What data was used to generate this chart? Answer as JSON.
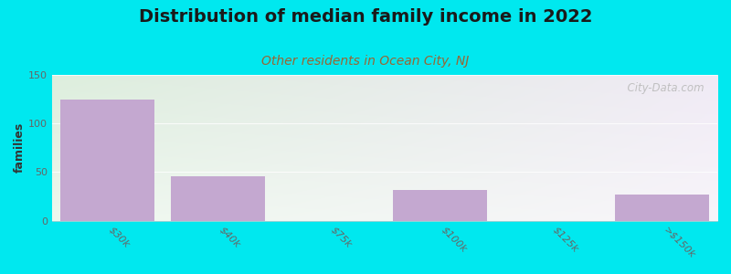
{
  "title": "Distribution of median family income in 2022",
  "subtitle": "Other residents in Ocean City, NJ",
  "ylabel": "families",
  "categories": [
    "$30k",
    "$40k",
    "$75k",
    "$100k",
    "$125k",
    ">$150k"
  ],
  "values": [
    125,
    46,
    0,
    32,
    0,
    27
  ],
  "bar_color": "#c4a8d0",
  "background_color": "#00e8ef",
  "plot_bg_topleft": "#ddeedd",
  "plot_bg_topright": "#f0eaf5",
  "plot_bg_bottomright": "#ffffff",
  "plot_bg_bottomleft": "#eaf5ea",
  "ylim": [
    0,
    150
  ],
  "yticks": [
    0,
    50,
    100,
    150
  ],
  "watermark": "  City-Data.com",
  "title_fontsize": 14,
  "subtitle_fontsize": 10,
  "ylabel_fontsize": 9,
  "tick_fontsize": 8,
  "subtitle_color": "#996633",
  "ylabel_color": "#333333",
  "ytick_color": "#666666",
  "xtick_color": "#666666"
}
